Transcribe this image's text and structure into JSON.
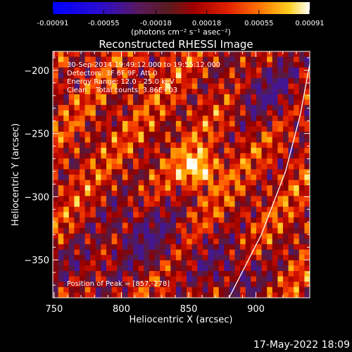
{
  "chart_data": {
    "type": "heatmap",
    "title": "Reconstructed RHESSI Image",
    "xlabel": "Heliocentric X (arcsec)",
    "ylabel": "Heliocentric Y (arcsec)",
    "xlim": [
      749,
      940
    ],
    "ylim": [
      -380,
      -185
    ],
    "x_ticks": [
      "750",
      "800",
      "850",
      "900"
    ],
    "x_tick_values": [
      750,
      800,
      850,
      900
    ],
    "y_ticks": [
      "-200",
      "-250",
      "-300",
      "-350"
    ],
    "y_tick_values": [
      -200,
      -250,
      -300,
      -350
    ],
    "colorbar": {
      "ticks": [
        "-0.00091",
        "-0.00055",
        "-0.00018",
        "0.00018",
        "0.00055",
        "0.00091"
      ],
      "tick_values": [
        -0.00091,
        -0.00055,
        -0.00018,
        0.00018,
        0.00055,
        0.00091
      ],
      "unit_label": "(photons cm⁻² s⁻¹ asec⁻²)",
      "range": [
        -0.00091,
        0.00091
      ],
      "colormap": [
        "#0000ff",
        "#3a10c0",
        "#4a1a72",
        "#5a1a40",
        "#8a0000",
        "#d01000",
        "#ff5000",
        "#ffa000",
        "#ffe040",
        "#ffffff"
      ]
    },
    "annotations": [
      "30-Sep-2014 19:49:12.000 to 19:55:12.000",
      "Detectors: 3F 6F 9F, Att 0",
      "Energy Range: 12.0 - 25.0 keV",
      "Clean    Total counts: 3.86E+03",
      "Position of Peak = [857,-278]"
    ],
    "peak_position": [
      857,
      -278
    ],
    "limb_line": [
      [
        880,
        -380
      ],
      [
        904,
        -330
      ],
      [
        922,
        -280
      ],
      [
        933,
        -235
      ],
      [
        940,
        -195
      ]
    ],
    "grid": false,
    "footer_date": "17-May-2022 18:09"
  }
}
